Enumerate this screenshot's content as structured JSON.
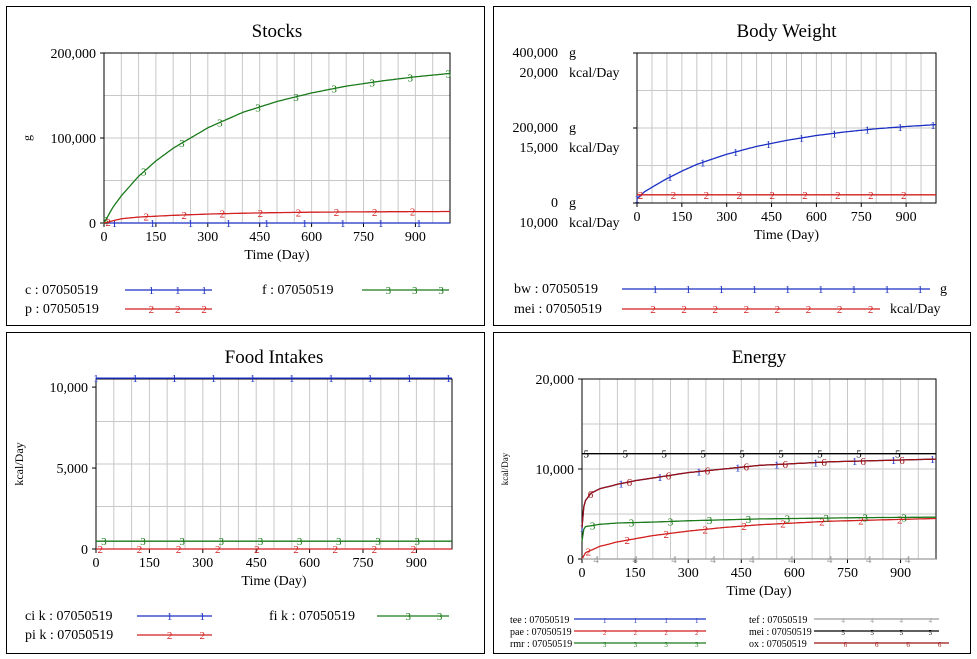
{
  "colors": {
    "blue": "#1b2fc4",
    "red": "#d21f1f",
    "green": "#1a7a1a",
    "gray": "#9a9a9a",
    "black": "#000000",
    "grid": "#c8c8c8"
  },
  "x_axis": {
    "label": "Time (Day)",
    "ticks": [
      "0",
      "150",
      "300",
      "450",
      "600",
      "750",
      "900"
    ]
  },
  "chart_data": [
    {
      "type": "line",
      "title": "Stocks",
      "xlabel": "Time (Day)",
      "ylabel": "g",
      "xlim": [
        0,
        1000
      ],
      "ylim": [
        0,
        200000
      ],
      "y_ticks": [
        {
          "v": 0,
          "label": "0"
        },
        {
          "v": 100000,
          "label": "100,000"
        },
        {
          "v": 200000,
          "label": "200,000"
        }
      ],
      "series": [
        {
          "name": "c : 07050519",
          "marker": "1",
          "color": "blue",
          "x": [
            0,
            100,
            200,
            300,
            400,
            500,
            600,
            700,
            800,
            900,
            1000
          ],
          "y": [
            0,
            0,
            0,
            0,
            0,
            0,
            0,
            0,
            0,
            0,
            0
          ]
        },
        {
          "name": "f : 07050519",
          "marker": "3",
          "color": "green",
          "x": [
            0,
            25,
            50,
            100,
            150,
            200,
            300,
            400,
            500,
            600,
            700,
            800,
            900,
            1000
          ],
          "y": [
            0,
            18000,
            32000,
            55000,
            73000,
            88000,
            112000,
            130000,
            143000,
            153000,
            161000,
            167000,
            172000,
            176000
          ]
        },
        {
          "name": "p : 07050519",
          "marker": "2",
          "color": "red",
          "x": [
            0,
            50,
            100,
            200,
            300,
            400,
            500,
            600,
            700,
            800,
            900,
            1000
          ],
          "y": [
            0,
            5000,
            7000,
            9000,
            10500,
            11500,
            12200,
            12700,
            13000,
            13200,
            13400,
            13500
          ]
        }
      ]
    },
    {
      "type": "line",
      "title": "Body Weight",
      "xlabel": "Time (Day)",
      "xlim": [
        0,
        1000
      ],
      "ylim": [
        0,
        400000
      ],
      "y_ticks": [
        {
          "v": 400000,
          "label": "400,000",
          "unit": "g",
          "alt": "20,000",
          "alt_unit": "kcal/Day"
        },
        {
          "v": 200000,
          "label": "200,000",
          "unit": "g",
          "alt": "15,000",
          "alt_unit": "kcal/Day"
        },
        {
          "v": 0,
          "label": "0",
          "unit": "g",
          "alt": "10,000",
          "alt_unit": "kcal/Day"
        }
      ],
      "series": [
        {
          "name": "bw : 07050519",
          "marker": "1",
          "color": "blue",
          "unit": "g",
          "x": [
            0,
            25,
            50,
            100,
            150,
            200,
            300,
            400,
            500,
            600,
            700,
            800,
            900,
            1000
          ],
          "y": [
            12000,
            30000,
            42000,
            65000,
            85000,
            103000,
            130000,
            151000,
            167000,
            180000,
            190000,
            198000,
            204000,
            209000
          ]
        },
        {
          "name": "mei : 07050519",
          "marker": "2",
          "color": "red",
          "unit": "kcal/Day",
          "x": [
            0,
            1000
          ],
          "y": [
            10550,
            10550
          ],
          "yscale": [
            10000,
            20000
          ]
        }
      ]
    },
    {
      "type": "line",
      "title": "Food Intakes",
      "xlabel": "Time (Day)",
      "ylabel": "kcal/Day",
      "xlim": [
        0,
        1000
      ],
      "ylim": [
        0,
        10500
      ],
      "y_ticks": [
        {
          "v": 0,
          "label": "0"
        },
        {
          "v": 5000,
          "label": "5,000"
        },
        {
          "v": 10000,
          "label": "10,000"
        }
      ],
      "series": [
        {
          "name": "ci k : 07050519",
          "marker": "1",
          "color": "blue",
          "x": [
            0,
            1000
          ],
          "y": [
            10550,
            10550
          ]
        },
        {
          "name": "fi k : 07050519",
          "marker": "3",
          "color": "green",
          "x": [
            0,
            1000
          ],
          "y": [
            480,
            480
          ]
        },
        {
          "name": "pi k : 07050519",
          "marker": "2",
          "color": "red",
          "x": [
            0,
            1000
          ],
          "y": [
            0,
            0
          ]
        }
      ]
    },
    {
      "type": "line",
      "title": "Energy",
      "xlabel": "Time (Day)",
      "ylabel": "kcal/Day",
      "xlim": [
        0,
        1000
      ],
      "ylim": [
        0,
        20000
      ],
      "y_ticks": [
        {
          "v": 0,
          "label": "0"
        },
        {
          "v": 10000,
          "label": "10,000"
        },
        {
          "v": 20000,
          "label": "20,000"
        }
      ],
      "series": [
        {
          "name": "tee : 07050519",
          "marker": "1",
          "color": "blue",
          "x": [
            0,
            5,
            10,
            25,
            50,
            100,
            150,
            200,
            300,
            400,
            500,
            600,
            700,
            800,
            900,
            1000
          ],
          "y": [
            3500,
            5800,
            6500,
            7300,
            7800,
            8300,
            8700,
            9000,
            9600,
            10000,
            10400,
            10600,
            10800,
            10900,
            11000,
            11100
          ]
        },
        {
          "name": "pae : 07050519",
          "marker": "2",
          "color": "red",
          "x": [
            0,
            10,
            50,
            100,
            200,
            300,
            400,
            500,
            600,
            700,
            800,
            900,
            1000
          ],
          "y": [
            0,
            700,
            1400,
            1900,
            2600,
            3100,
            3500,
            3800,
            4000,
            4200,
            4300,
            4400,
            4500
          ]
        },
        {
          "name": "rmr : 07050519",
          "marker": "3",
          "color": "green",
          "x": [
            0,
            5,
            10,
            50,
            100,
            200,
            300,
            400,
            500,
            600,
            700,
            800,
            900,
            1000
          ],
          "y": [
            2000,
            3300,
            3600,
            3850,
            4000,
            4100,
            4250,
            4350,
            4450,
            4500,
            4550,
            4600,
            4620,
            4650
          ]
        },
        {
          "name": "tef : 07050519",
          "marker": "4",
          "color": "gray",
          "x": [
            0,
            1000
          ],
          "y": [
            0,
            0
          ]
        },
        {
          "name": "mei : 07050519",
          "marker": "5",
          "color": "black",
          "x": [
            0,
            1000
          ],
          "y": [
            11700,
            11700
          ]
        },
        {
          "name": "ox : 07050519",
          "marker": "6",
          "color": "darkred",
          "x": [
            0,
            5,
            10,
            25,
            50,
            100,
            150,
            200,
            300,
            400,
            500,
            600,
            700,
            800,
            900,
            1000
          ],
          "y": [
            3500,
            5800,
            6500,
            7300,
            7800,
            8300,
            8700,
            9000,
            9600,
            10000,
            10400,
            10600,
            10800,
            10900,
            11000,
            11100
          ]
        }
      ]
    }
  ]
}
